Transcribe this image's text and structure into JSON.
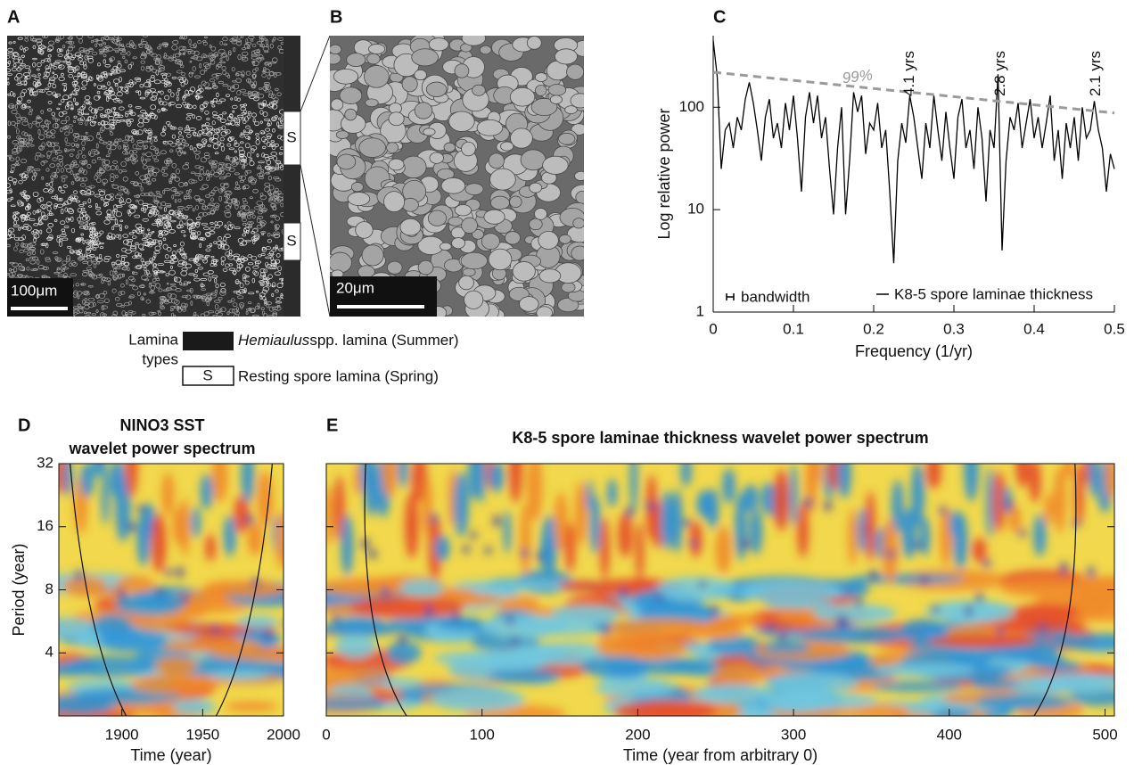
{
  "figure": {
    "panel_a": {
      "label": "A",
      "scale_bar": "100μm",
      "spring_marks": [
        "S",
        "S"
      ]
    },
    "panel_b": {
      "label": "B",
      "scale_bar": "20μm"
    },
    "legend": {
      "title_lines": [
        "Lamina",
        "types"
      ],
      "summer": {
        "italic": "Hemiaulus",
        "text": "spp. lamina (Summer)"
      },
      "spring": {
        "symbol": "S",
        "text": "Resting spore lamina (Spring)"
      }
    }
  },
  "chart_data": [
    {
      "type": "line",
      "panel_label": "C",
      "xlabel": "Frequency (1/yr)",
      "ylabel": "Log relative power",
      "xlim": [
        0,
        0.5
      ],
      "ylim": [
        1,
        500
      ],
      "log_y": true,
      "xticks": [
        0,
        0.1,
        0.2,
        0.3,
        0.4,
        0.5
      ],
      "yticks": [
        1,
        10,
        100
      ],
      "series": [
        {
          "name": "K8-5 spore laminae thickness",
          "color": "#000000",
          "x": [
            0,
            0.005,
            0.01,
            0.015,
            0.02,
            0.025,
            0.03,
            0.035,
            0.04,
            0.045,
            0.05,
            0.055,
            0.06,
            0.065,
            0.07,
            0.075,
            0.08,
            0.085,
            0.09,
            0.095,
            0.1,
            0.105,
            0.11,
            0.115,
            0.12,
            0.125,
            0.13,
            0.135,
            0.14,
            0.145,
            0.15,
            0.155,
            0.16,
            0.165,
            0.17,
            0.175,
            0.18,
            0.185,
            0.19,
            0.195,
            0.2,
            0.205,
            0.21,
            0.215,
            0.22,
            0.225,
            0.23,
            0.235,
            0.24,
            0.245,
            0.25,
            0.255,
            0.26,
            0.265,
            0.27,
            0.275,
            0.28,
            0.285,
            0.29,
            0.295,
            0.3,
            0.305,
            0.31,
            0.315,
            0.32,
            0.325,
            0.33,
            0.335,
            0.34,
            0.345,
            0.35,
            0.355,
            0.36,
            0.365,
            0.37,
            0.375,
            0.38,
            0.385,
            0.39,
            0.395,
            0.4,
            0.405,
            0.41,
            0.415,
            0.42,
            0.425,
            0.43,
            0.435,
            0.44,
            0.445,
            0.45,
            0.455,
            0.46,
            0.465,
            0.47,
            0.475,
            0.48,
            0.485,
            0.49,
            0.495,
            0.5
          ],
          "values": [
            450,
            200,
            25,
            60,
            70,
            40,
            80,
            60,
            120,
            175,
            110,
            60,
            30,
            80,
            120,
            50,
            70,
            40,
            110,
            60,
            130,
            50,
            15,
            80,
            140,
            70,
            130,
            50,
            80,
            25,
            9,
            40,
            100,
            9,
            30,
            140,
            90,
            130,
            35,
            70,
            60,
            110,
            40,
            60,
            15,
            3,
            30,
            70,
            45,
            130,
            80,
            40,
            20,
            70,
            40,
            130,
            60,
            30,
            90,
            40,
            20,
            80,
            120,
            40,
            60,
            25,
            100,
            50,
            12,
            60,
            40,
            210,
            4,
            30,
            80,
            60,
            110,
            40,
            70,
            120,
            50,
            80,
            40,
            70,
            130,
            30,
            60,
            20,
            70,
            40,
            80,
            30,
            100,
            50,
            60,
            115,
            60,
            40,
            15,
            35,
            25
          ]
        },
        {
          "name": "99%",
          "color": "#9a9a9a",
          "dashed": true,
          "x": [
            0,
            0.5
          ],
          "values": [
            220,
            88
          ]
        }
      ],
      "annotations": [
        {
          "text": "4.1 yrs",
          "x": 0.244
        },
        {
          "text": "2.8 yrs",
          "x": 0.357
        },
        {
          "text": "2.1 yrs",
          "x": 0.476
        }
      ],
      "bandwidth_label": "bandwidth"
    },
    {
      "type": "wavelet",
      "panel_label": "D",
      "title_lines": [
        "NINO3 SST",
        "wavelet power spectrum"
      ],
      "xlabel": "Time (year)",
      "ylabel": "Period (year)",
      "xlim": [
        1861,
        2000
      ],
      "ylim": [
        2,
        32
      ],
      "log_y": true,
      "xticks": [
        1900,
        1950,
        2000
      ],
      "yticks": [
        4,
        8,
        16,
        32
      ],
      "ytick_labels": true
    },
    {
      "type": "wavelet",
      "panel_label": "E",
      "title_lines": [
        "K8-5 spore laminae thickness wavelet power spectrum"
      ],
      "xlabel": "Time (year from arbitrary 0)",
      "xlim": [
        0,
        506
      ],
      "ylim": [
        2,
        32
      ],
      "log_y": true,
      "xticks": [
        0,
        100,
        200,
        300,
        400,
        500
      ],
      "yticks": [
        4,
        8,
        16,
        32
      ],
      "ytick_labels": false
    }
  ]
}
